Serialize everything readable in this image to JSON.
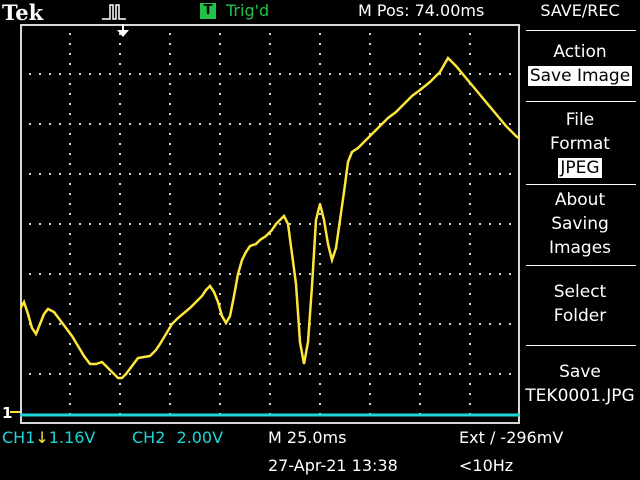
{
  "header": {
    "logo": "Tek",
    "trig_badge": "T",
    "trig_status": "Trig'd",
    "mpos": "M Pos: 74.00ms"
  },
  "menu": {
    "title": "SAVE/REC",
    "action_label": "Action",
    "action_value": "Save Image",
    "file_format_line1": "File",
    "file_format_line2": "Format",
    "file_format_value": "JPEG",
    "about_line1": "About",
    "about_line2": "Saving",
    "about_line3": "Images",
    "select_line1": "Select",
    "select_line2": "Folder",
    "save_line1": "Save",
    "save_line2": "TEK0001.JPG"
  },
  "status": {
    "ch1": "CH1",
    "ch1_arrow": "↓",
    "ch1_scale": "1.16V",
    "ch2_label": "CH2",
    "ch2_scale": "2.00V",
    "timebase": "M 25.0ms",
    "trigger": "Ext ∕ -296mV",
    "date": "27-Apr-21 13:38",
    "freq": "<10Hz"
  },
  "ground_marker": "1",
  "colors": {
    "ch1": "#ffe63a",
    "ch2": "#1fd6d6",
    "trig": "#22c24a"
  }
}
